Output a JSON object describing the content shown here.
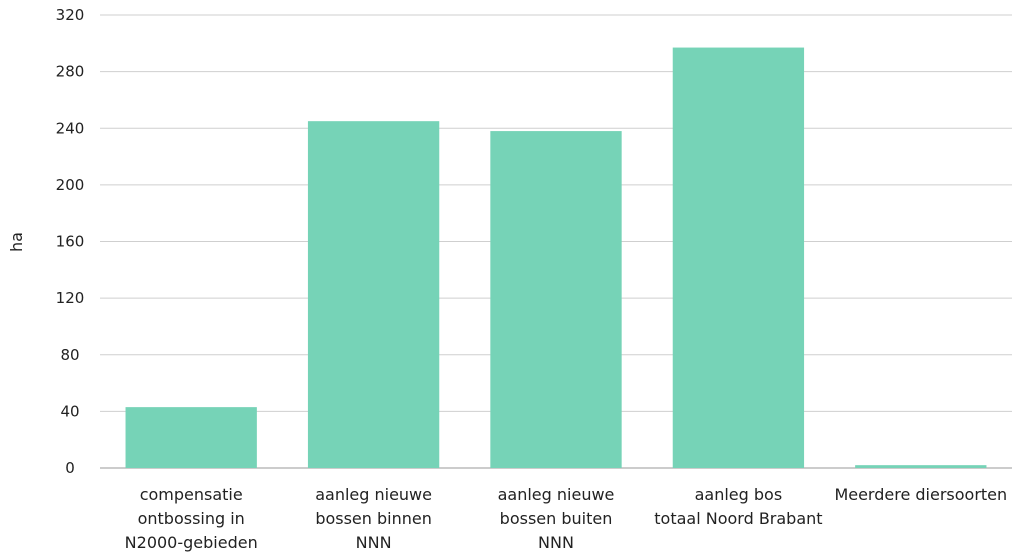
{
  "chart_data": {
    "type": "bar",
    "ylabel": "ha",
    "xlabel": "",
    "ylim": [
      0,
      320
    ],
    "yticks": [
      0,
      40,
      80,
      120,
      160,
      200,
      240,
      280,
      320
    ],
    "grid": true,
    "bar_color": "#76d3b7",
    "categories": [
      [
        "compensatie",
        "ontbossing in",
        "N2000-gebieden"
      ],
      [
        "aanleg nieuwe",
        "bossen binnen",
        "NNN"
      ],
      [
        "aanleg nieuwe",
        "bossen buiten",
        "NNN"
      ],
      [
        "aanleg bos",
        "totaal Noord Brabant"
      ],
      [
        "Meerdere diersoorten"
      ]
    ],
    "values": [
      43,
      245,
      238,
      297,
      2
    ]
  }
}
